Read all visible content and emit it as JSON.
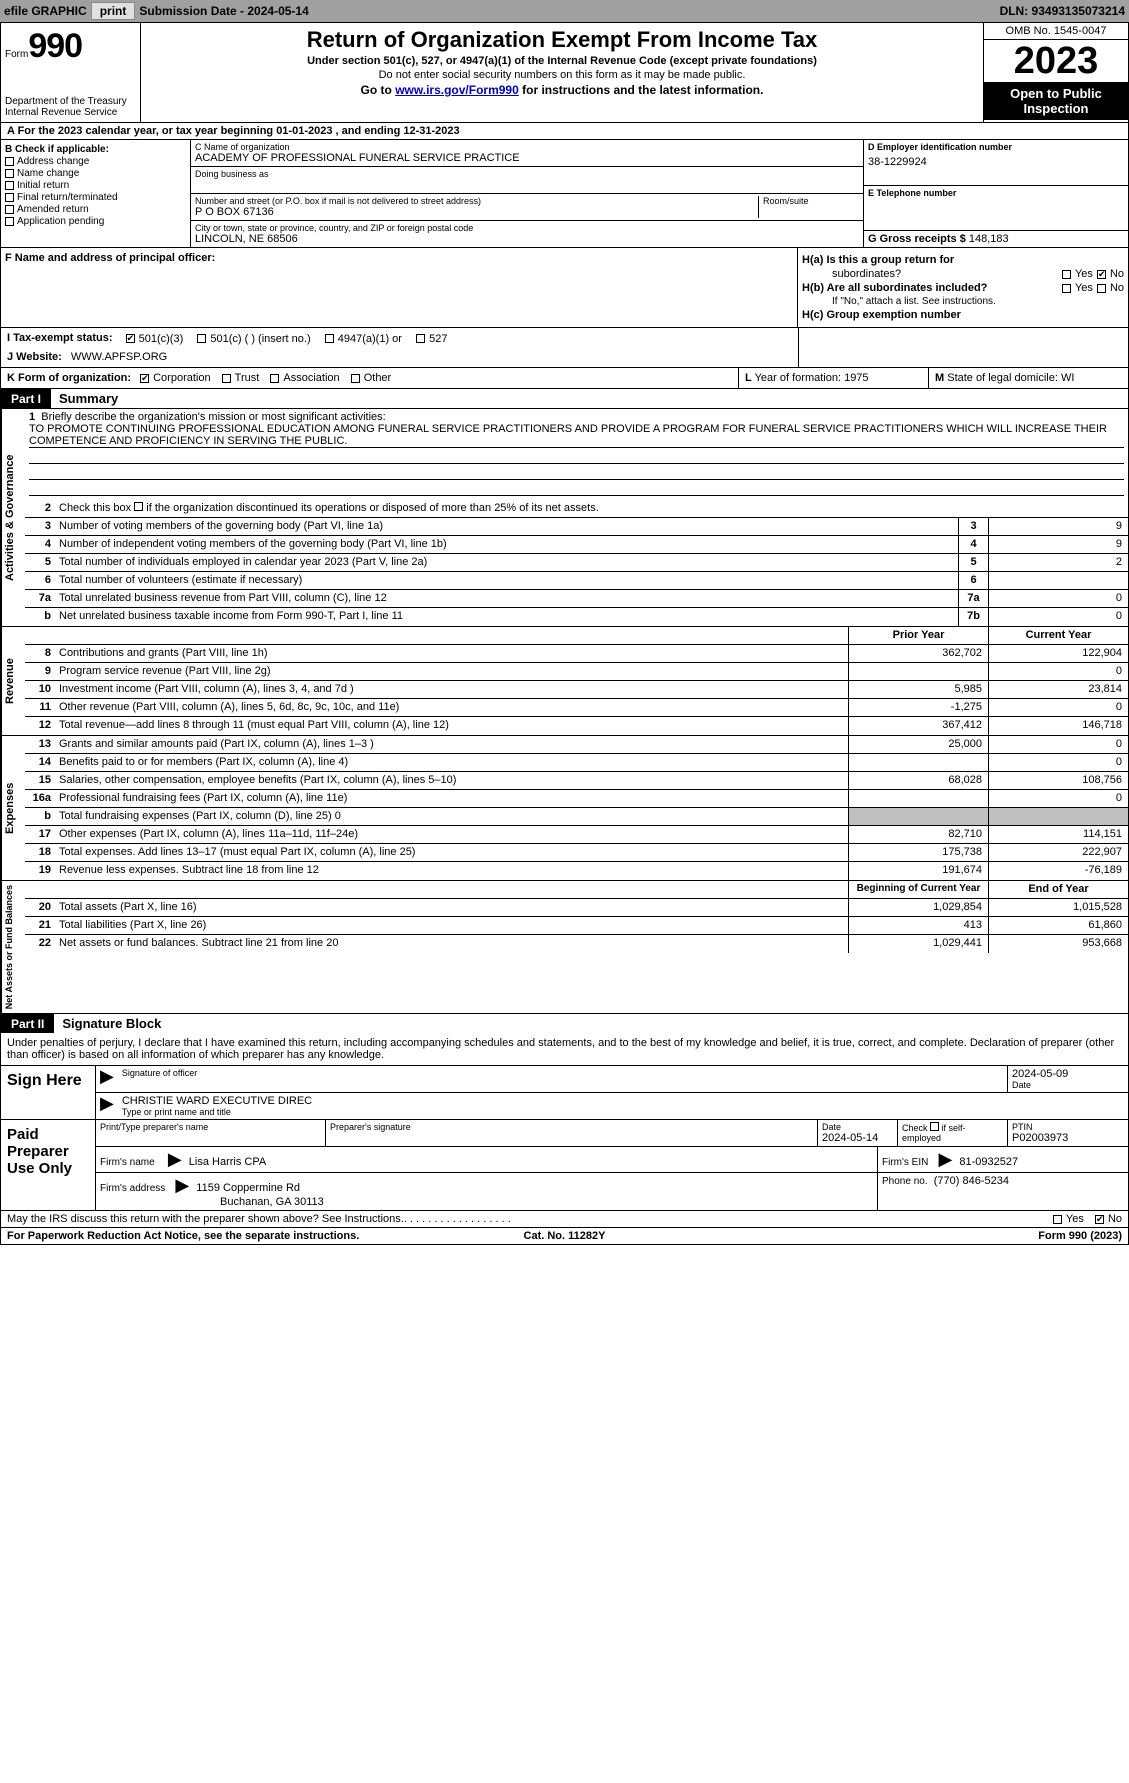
{
  "top_bar": {
    "efile_label": "efile GRAPHIC",
    "print_btn": "print",
    "submission_label": "Submission Date - 2024-05-14",
    "dln_label": "DLN: 93493135073214"
  },
  "header": {
    "form_word": "Form",
    "form_number": "990",
    "dept": "Department of the Treasury\nInternal Revenue Service",
    "title": "Return of Organization Exempt From Income Tax",
    "subtitle": "Under section 501(c), 527, or 4947(a)(1) of the Internal Revenue Code (except private foundations)",
    "note": "Do not enter social security numbers on this form as it may be made public.",
    "goto_prefix": "Go to ",
    "goto_link": "www.irs.gov/Form990",
    "goto_suffix": " for instructions and the latest information.",
    "omb": "OMB No. 1545-0047",
    "year": "2023",
    "inspect": "Open to Public Inspection"
  },
  "row_a": "A  For the 2023 calendar year, or tax year beginning 01-01-2023    , and ending 12-31-2023",
  "col_b": {
    "hdr": "B Check if applicable:",
    "items": [
      "Address change",
      "Name change",
      "Initial return",
      "Final return/terminated",
      "Amended return",
      "Application pending"
    ]
  },
  "col_c": {
    "name_label": "C Name of organization",
    "name_val": "ACADEMY OF PROFESSIONAL FUNERAL SERVICE PRACTICE",
    "dba_label": "Doing business as",
    "street_label": "Number and street (or P.O. box if mail is not delivered to street address)",
    "street_val": "P O BOX 67136",
    "room_label": "Room/suite",
    "city_label": "City or town, state or province, country, and ZIP or foreign postal code",
    "city_val": "LINCOLN, NE  68506"
  },
  "col_d": {
    "ein_label": "D Employer identification number",
    "ein_val": "38-1229924",
    "phone_label": "E Telephone number",
    "gross_label": "G Gross receipts $",
    "gross_val": "148,183"
  },
  "row_f": {
    "label": "F  Name and address of principal officer:"
  },
  "row_h": {
    "ha_label": "H(a)  Is this a group return for",
    "ha_sub": "subordinates?",
    "hb_label": "H(b)  Are all subordinates included?",
    "hb_note": "If \"No,\" attach a list. See instructions.",
    "hc_label": "H(c)  Group exemption number",
    "yes": "Yes",
    "no": "No"
  },
  "row_i": {
    "label": "I    Tax-exempt status:",
    "opts": [
      "501(c)(3)",
      "501(c) (  ) (insert no.)",
      "4947(a)(1) or",
      "527"
    ]
  },
  "row_j": {
    "label": "J   Website:",
    "val": "WWW.APFSP.ORG"
  },
  "row_k": {
    "label": "K Form of organization:",
    "opts": [
      "Corporation",
      "Trust",
      "Association",
      "Other"
    ],
    "l_label": "L Year of formation: 1975",
    "m_label": "M State of legal domicile: WI"
  },
  "part1": {
    "label": "Part I",
    "title": "Summary"
  },
  "vtabs": {
    "gov": "Activities & Governance",
    "rev": "Revenue",
    "exp": "Expenses",
    "net": "Net Assets or Fund Balances"
  },
  "mission": {
    "intro": "Briefly describe the organization's mission or most significant activities:",
    "text": "TO PROMOTE CONTINUING PROFESSIONAL EDUCATION AMONG FUNERAL SERVICE PRACTITIONERS AND PROVIDE A PROGRAM FOR FUNERAL SERVICE PRACTITIONERS WHICH WILL INCREASE THEIR COMPETENCE AND PROFICIENCY IN SERVING THE PUBLIC."
  },
  "gov_lines": {
    "l2": "Check this box       if the organization discontinued its operations or disposed of more than 25% of its net assets.",
    "l3": {
      "text": "Number of voting members of the governing body (Part VI, line 1a)",
      "box": "3",
      "val": "9"
    },
    "l4": {
      "text": "Number of independent voting members of the governing body (Part VI, line 1b)",
      "box": "4",
      "val": "9"
    },
    "l5": {
      "text": "Total number of individuals employed in calendar year 2023 (Part V, line 2a)",
      "box": "5",
      "val": "2"
    },
    "l6": {
      "text": "Total number of volunteers (estimate if necessary)",
      "box": "6",
      "val": ""
    },
    "l7a": {
      "text": "Total unrelated business revenue from Part VIII, column (C), line 12",
      "box": "7a",
      "val": "0"
    },
    "l7b": {
      "text": "Net unrelated business taxable income from Form 990-T, Part I, line 11",
      "box": "7b",
      "val": "0"
    }
  },
  "col_hdrs": {
    "prior": "Prior Year",
    "current": "Current Year",
    "begin": "Beginning of Current Year",
    "end": "End of Year"
  },
  "rev_lines": [
    {
      "n": "8",
      "text": "Contributions and grants (Part VIII, line 1h)",
      "prior": "362,702",
      "curr": "122,904"
    },
    {
      "n": "9",
      "text": "Program service revenue (Part VIII, line 2g)",
      "prior": "",
      "curr": "0"
    },
    {
      "n": "10",
      "text": "Investment income (Part VIII, column (A), lines 3, 4, and 7d )",
      "prior": "5,985",
      "curr": "23,814"
    },
    {
      "n": "11",
      "text": "Other revenue (Part VIII, column (A), lines 5, 6d, 8c, 9c, 10c, and 11e)",
      "prior": "-1,275",
      "curr": "0"
    },
    {
      "n": "12",
      "text": "Total revenue—add lines 8 through 11 (must equal Part VIII, column (A), line 12)",
      "prior": "367,412",
      "curr": "146,718"
    }
  ],
  "exp_lines": [
    {
      "n": "13",
      "text": "Grants and similar amounts paid (Part IX, column (A), lines 1–3 )",
      "prior": "25,000",
      "curr": "0"
    },
    {
      "n": "14",
      "text": "Benefits paid to or for members (Part IX, column (A), line 4)",
      "prior": "",
      "curr": "0"
    },
    {
      "n": "15",
      "text": "Salaries, other compensation, employee benefits (Part IX, column (A), lines 5–10)",
      "prior": "68,028",
      "curr": "108,756"
    },
    {
      "n": "16a",
      "text": "Professional fundraising fees (Part IX, column (A), line 11e)",
      "prior": "",
      "curr": "0"
    },
    {
      "n": "b",
      "text": "Total fundraising expenses (Part IX, column (D), line 25) 0",
      "prior": "SHADE",
      "curr": "SHADE"
    },
    {
      "n": "17",
      "text": "Other expenses (Part IX, column (A), lines 11a–11d, 11f–24e)",
      "prior": "82,710",
      "curr": "114,151"
    },
    {
      "n": "18",
      "text": "Total expenses. Add lines 13–17 (must equal Part IX, column (A), line 25)",
      "prior": "175,738",
      "curr": "222,907"
    },
    {
      "n": "19",
      "text": "Revenue less expenses. Subtract line 18 from line 12",
      "prior": "191,674",
      "curr": "-76,189"
    }
  ],
  "net_lines": [
    {
      "n": "20",
      "text": "Total assets (Part X, line 16)",
      "prior": "1,029,854",
      "curr": "1,015,528"
    },
    {
      "n": "21",
      "text": "Total liabilities (Part X, line 26)",
      "prior": "413",
      "curr": "61,860"
    },
    {
      "n": "22",
      "text": "Net assets or fund balances. Subtract line 21 from line 20",
      "prior": "1,029,441",
      "curr": "953,668"
    }
  ],
  "part2": {
    "label": "Part II",
    "title": "Signature Block"
  },
  "sig_intro": "Under penalties of perjury, I declare that I have examined this return, including accompanying schedules and statements, and to the best of my knowledge and belief, it is true, correct, and complete. Declaration of preparer (other than officer) is based on all information of which preparer has any knowledge.",
  "sign_here": {
    "label": "Sign Here",
    "sig_label": "Signature of officer",
    "date_label": "Date",
    "date_val": "2024-05-09",
    "name_label": "Type or print name and title",
    "name_val": "CHRISTIE WARD  EXECUTIVE DIREC"
  },
  "paid_prep": {
    "label": "Paid Preparer Use Only",
    "print_label": "Print/Type preparer's name",
    "sig_label": "Preparer's signature",
    "date_label": "Date",
    "date_val": "2024-05-14",
    "check_label": "Check       if self-employed",
    "ptin_label": "PTIN",
    "ptin_val": "P02003973",
    "firm_name_label": "Firm's name",
    "firm_name_val": "Lisa Harris CPA",
    "firm_ein_label": "Firm's EIN",
    "firm_ein_val": "81-0932527",
    "firm_addr_label": "Firm's address",
    "firm_addr_val1": "1159 Coppermine Rd",
    "firm_addr_val2": "Buchanan, GA  30113",
    "phone_label": "Phone no.",
    "phone_val": "(770) 846-5234"
  },
  "discuss": {
    "text": "May the IRS discuss this return with the preparer shown above? See Instructions.",
    "yes": "Yes",
    "no": "No"
  },
  "footer": {
    "l": "For Paperwork Reduction Act Notice, see the separate instructions.",
    "m": "Cat. No. 11282Y",
    "r": "Form 990 (2023)"
  }
}
